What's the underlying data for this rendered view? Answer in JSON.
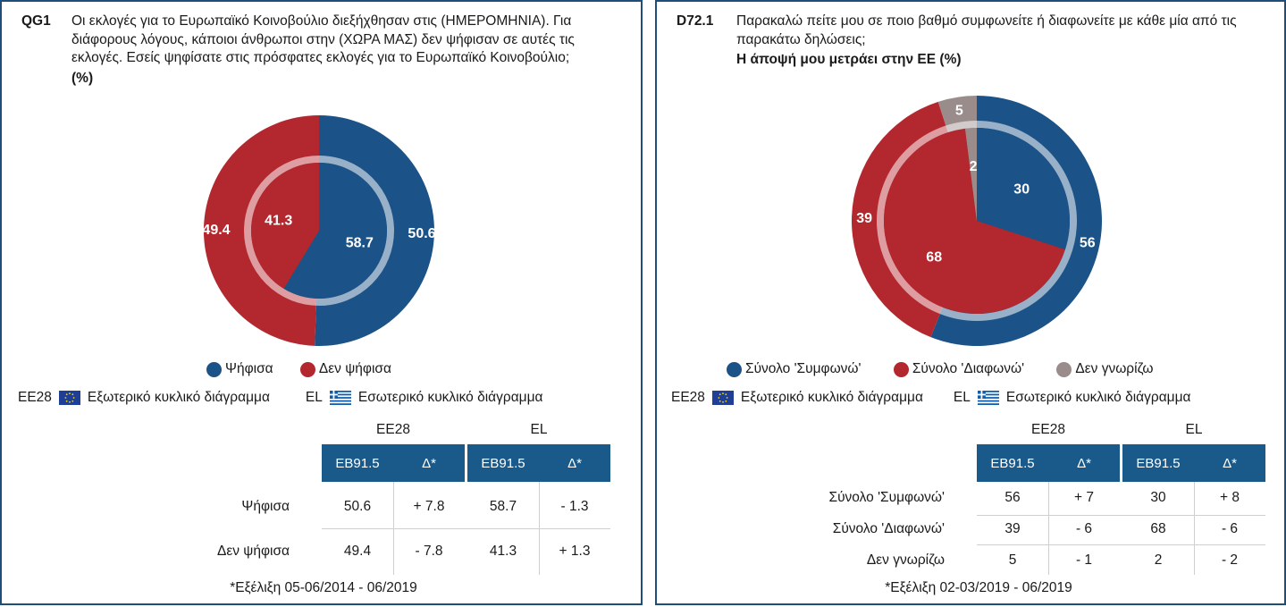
{
  "chart_data": [
    {
      "type": "pie",
      "code": "QG1",
      "question": "Οι εκλογές για το Ευρωπαϊκό Κοινοβούλιο διεξήχθησαν στις (ΗΜΕΡΟΜΗΝΙΑ). Για διάφορους λόγους, κάποιοι άνθρωποι στην (ΧΩΡΑ ΜΑΣ) δεν ψήφισαν σε αυτές τις εκλογές. Εσείς ψηφίσατε στις πρόσφατες εκλογές για το Ευρωπαϊκό Κοινοβούλιο;",
      "subtitle": "(%)",
      "categories": [
        "Ψήφισα",
        "Δεν ψήφισα"
      ],
      "colors": [
        "#1b5287",
        "#b3272f"
      ],
      "series": [
        {
          "name": "EE28",
          "ring": "outer",
          "values": [
            50.6,
            49.4
          ]
        },
        {
          "name": "EL",
          "ring": "inner",
          "values": [
            58.7,
            41.3
          ]
        }
      ],
      "legend": [
        "Ψήφισα",
        "Δεν ψήφισα"
      ],
      "key": {
        "outer_code": "EE28",
        "outer_label": "Εξωτερικό κυκλικό διάγραμμα",
        "inner_code": "EL",
        "inner_label": "Εσωτερικό κυκλικό διάγραμμα"
      },
      "table": {
        "groups": [
          "EE28",
          "EL"
        ],
        "subheaders": [
          "EB91.5",
          "Δ*"
        ],
        "rows": [
          {
            "label": "Ψήφισα",
            "cells": [
              "50.6",
              "+ 7.8",
              "58.7",
              "- 1.3"
            ]
          },
          {
            "label": "Δεν ψήφισα",
            "cells": [
              "49.4",
              "- 7.8",
              "41.3",
              "+ 1.3"
            ]
          }
        ]
      },
      "footnote": "*Εξέλιξη 05-06/2014 - 06/2019"
    },
    {
      "type": "pie",
      "code": "D72.1",
      "question": "Παρακαλώ πείτε μου σε ποιο βαθμό συμφωνείτε ή διαφωνείτε με κάθε μία από τις παρακάτω δηλώσεις;",
      "subtitle": "Η άποψή μου μετράει στην ΕΕ  (%)",
      "categories": [
        "Σύνολο 'Συμφωνώ'",
        "Σύνολο 'Διαφωνώ'",
        "Δεν γνωρίζω"
      ],
      "colors": [
        "#1b5287",
        "#b3272f",
        "#9b8c8c"
      ],
      "series": [
        {
          "name": "EE28",
          "ring": "outer",
          "values": [
            56,
            39,
            5
          ]
        },
        {
          "name": "EL",
          "ring": "inner",
          "values": [
            30,
            68,
            2
          ]
        }
      ],
      "legend": [
        "Σύνολο 'Συμφωνώ'",
        "Σύνολο 'Διαφωνώ'",
        "Δεν γνωρίζω"
      ],
      "key": {
        "outer_code": "EE28",
        "outer_label": "Εξωτερικό κυκλικό διάγραμμα",
        "inner_code": "EL",
        "inner_label": "Εσωτερικό κυκλικό διάγραμμα"
      },
      "table": {
        "groups": [
          "EE28",
          "EL"
        ],
        "subheaders": [
          "EB91.5",
          "Δ*"
        ],
        "rows": [
          {
            "label": "Σύνολο 'Συμφωνώ'",
            "cells": [
              "56",
              "+ 7",
              "30",
              "+ 8"
            ]
          },
          {
            "label": "Σύνολο 'Διαφωνώ'",
            "cells": [
              "39",
              "- 6",
              "68",
              "- 6"
            ]
          },
          {
            "label": "Δεν γνωρίζω",
            "cells": [
              "5",
              "- 1",
              "2",
              "- 2"
            ]
          }
        ]
      },
      "footnote": "*Εξέλιξη 02-03/2019 - 06/2019"
    }
  ]
}
